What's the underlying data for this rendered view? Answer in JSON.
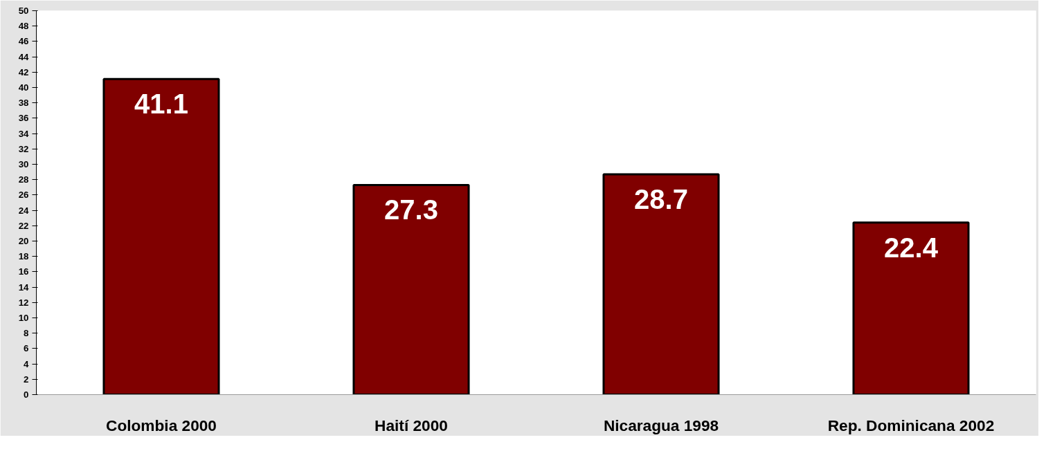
{
  "chart_data": {
    "type": "bar",
    "categories": [
      "Colombia 2000",
      "Haití 2000",
      "Nicaragua 1998",
      "Rep. Dominicana 2002"
    ],
    "values": [
      41.1,
      27.3,
      28.7,
      22.4
    ],
    "color": "#800000",
    "ylim": [
      0,
      50
    ],
    "yticks": [
      0,
      2,
      4,
      6,
      8,
      10,
      12,
      14,
      16,
      18,
      20,
      22,
      24,
      26,
      28,
      30,
      32,
      34,
      36,
      38,
      40,
      42,
      44,
      46,
      48,
      50
    ],
    "data_labels": true,
    "grid": false
  }
}
